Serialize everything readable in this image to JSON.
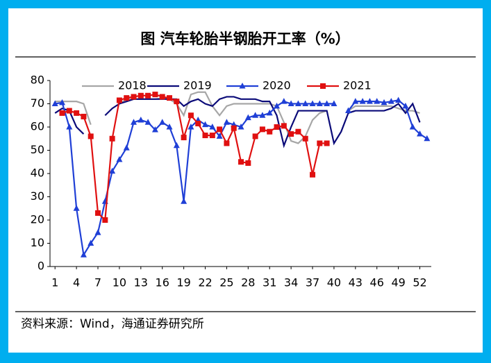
{
  "chart_data": {
    "type": "line",
    "title": "图 汽车轮胎半钢胎开工率（%）",
    "source": "资料来源：Wind，海通证券研究所",
    "x": [
      1,
      2,
      3,
      4,
      5,
      6,
      7,
      8,
      9,
      10,
      11,
      12,
      13,
      14,
      15,
      16,
      17,
      18,
      19,
      20,
      21,
      22,
      23,
      24,
      25,
      26,
      27,
      28,
      29,
      30,
      31,
      32,
      33,
      34,
      35,
      36,
      37,
      38,
      39,
      40,
      41,
      42,
      43,
      44,
      45,
      46,
      47,
      48,
      49,
      50,
      51,
      52,
      53
    ],
    "xlim": [
      0.3,
      53.6
    ],
    "xticks": [
      1,
      4,
      7,
      10,
      13,
      16,
      19,
      22,
      25,
      28,
      31,
      34,
      37,
      40,
      43,
      46,
      49,
      52
    ],
    "ylim": [
      0,
      80
    ],
    "yticks": [
      0,
      10,
      20,
      30,
      40,
      50,
      60,
      70,
      80
    ],
    "series": [
      {
        "name": "2018",
        "color": "#a6a6a6",
        "values": [
          71,
          71,
          71,
          71,
          70,
          61,
          null,
          null,
          null,
          70,
          72,
          72,
          72,
          72,
          72,
          72.5,
          72,
          70,
          65,
          74,
          75,
          75,
          69,
          65,
          69,
          70,
          70,
          70,
          70,
          70,
          70,
          69,
          62,
          54,
          53,
          56,
          63,
          66,
          67,
          null,
          null,
          67,
          69,
          69,
          69,
          69,
          69,
          69,
          68,
          67,
          67,
          66,
          null
        ]
      },
      {
        "name": "2019",
        "color": "#0a0a78",
        "values": [
          66,
          68,
          67,
          60,
          57,
          null,
          null,
          65,
          68,
          70,
          71,
          72,
          72,
          72,
          72,
          72,
          72,
          72,
          69,
          71,
          72,
          70,
          69,
          72,
          73,
          73,
          72,
          72,
          72,
          71,
          71,
          65,
          52,
          60,
          67,
          67,
          67,
          67,
          67,
          53,
          58,
          66,
          67,
          67,
          67,
          67,
          67,
          68,
          70,
          66,
          70,
          62,
          null
        ]
      },
      {
        "name": "2020",
        "color": "#1f3fd6",
        "marker": "triangle",
        "values": [
          70,
          70.5,
          60,
          25,
          5,
          10,
          14.6,
          28,
          41,
          46,
          51,
          62,
          63,
          62,
          58.8,
          62,
          60,
          52,
          28,
          60,
          63,
          61,
          60,
          56,
          62,
          61,
          60,
          64,
          65,
          65,
          66,
          69,
          71,
          70,
          70,
          70,
          70,
          70,
          70,
          70,
          null,
          67,
          71,
          71,
          71,
          71,
          70.5,
          71,
          71.5,
          69,
          60,
          57,
          55
        ]
      },
      {
        "name": "2021",
        "color": "#e01010",
        "marker": "square",
        "values": [
          null,
          66,
          67,
          66,
          64.5,
          56,
          23,
          20,
          55,
          71.5,
          72.5,
          73,
          73.5,
          73.5,
          74,
          73,
          72.5,
          71,
          55.5,
          65,
          61.5,
          56.4,
          56.4,
          59,
          53,
          59.5,
          45,
          44.5,
          56,
          59,
          58,
          60,
          60.5,
          57,
          58,
          55,
          39.5,
          53,
          53,
          null,
          null,
          null,
          null,
          null,
          null,
          null,
          null,
          null,
          null,
          null,
          null,
          null,
          null
        ]
      }
    ]
  }
}
